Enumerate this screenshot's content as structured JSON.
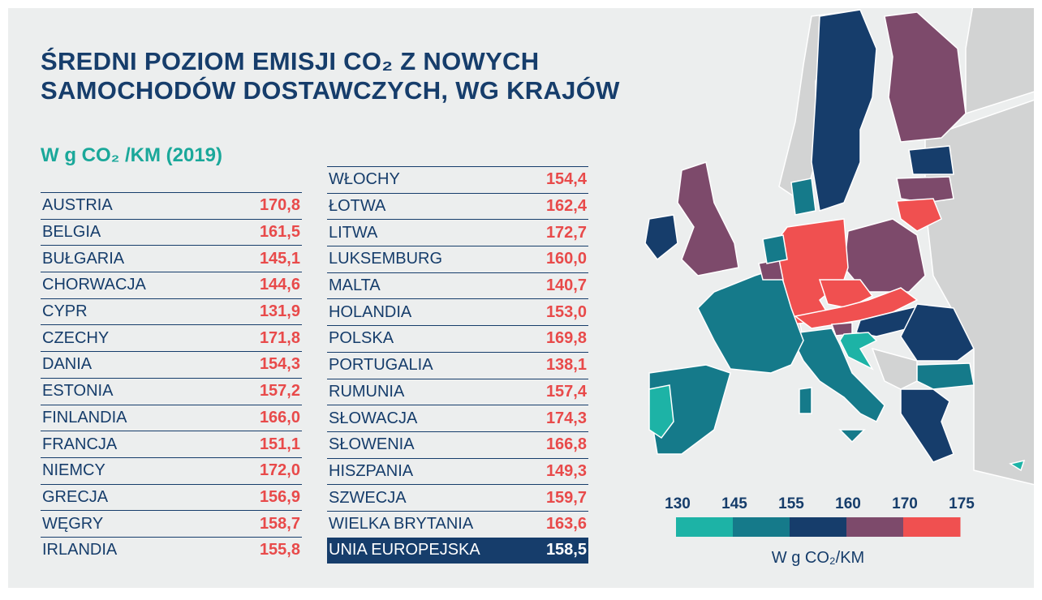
{
  "title": [
    "ŚREDNI POZIOM EMISJI CO₂ Z NOWYCH",
    "SAMOCHODÓW DOSTAWCZYCH, WG KRAJÓW"
  ],
  "subtitle": "W g CO₂ /KM (2019)",
  "table": {
    "columns": [
      {
        "rows": [
          [
            "AUSTRIA",
            "170,8"
          ],
          [
            "BELGIA",
            "161,5"
          ],
          [
            "BUŁGARIA",
            "145,1"
          ],
          [
            "CHORWACJA",
            "144,6"
          ],
          [
            "CYPR",
            "131,9"
          ],
          [
            "CZECHY",
            "171,8"
          ],
          [
            "DANIA",
            "154,3"
          ],
          [
            "ESTONIA",
            "157,2"
          ],
          [
            "FINLANDIA",
            "166,0"
          ],
          [
            "FRANCJA",
            "151,1"
          ],
          [
            "NIEMCY",
            "172,0"
          ],
          [
            "GRECJA",
            "156,9"
          ],
          [
            "WĘGRY",
            "158,7"
          ],
          [
            "IRLANDIA",
            "155,8"
          ]
        ]
      },
      {
        "rows": [
          [
            "WŁOCHY",
            "154,4"
          ],
          [
            "ŁOTWA",
            "162,4"
          ],
          [
            "LITWA",
            "172,7"
          ],
          [
            "LUKSEMBURG",
            "160,0"
          ],
          [
            "MALTA",
            "140,7"
          ],
          [
            "HOLANDIA",
            "153,0"
          ],
          [
            "POLSKA",
            "169,8"
          ],
          [
            "PORTUGALIA",
            "138,1"
          ],
          [
            "RUMUNIA",
            "157,4"
          ],
          [
            "SŁOWACJA",
            "174,3"
          ],
          [
            "SŁOWENIA",
            "166,8"
          ],
          [
            "HISZPANIA",
            "149,3"
          ],
          [
            "SZWECJA",
            "159,7"
          ],
          [
            "WIELKA BRYTANIA",
            "163,6"
          ]
        ]
      }
    ],
    "total": [
      "UNIA EUROPEJSKA",
      "158,5"
    ]
  },
  "legend": {
    "ticks": [
      130,
      145,
      155,
      160,
      170,
      175
    ],
    "colors": [
      "#1db3a6",
      "#157a8a",
      "#163d6b",
      "#7d4a6b",
      "#f05050"
    ],
    "label": "W g CO₂/KM"
  }
}
